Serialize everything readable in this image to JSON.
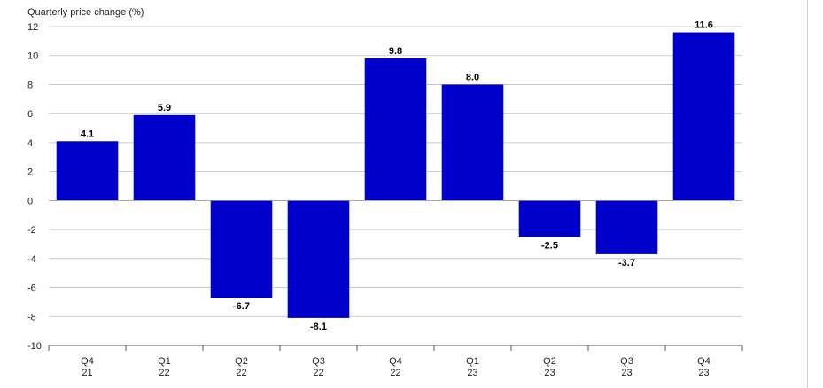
{
  "chart_data": {
    "type": "bar",
    "ylabel": "Quarterly price change (%)",
    "categories": [
      [
        "Q4",
        "21"
      ],
      [
        "Q1",
        "22"
      ],
      [
        "Q2",
        "22"
      ],
      [
        "Q3",
        "22"
      ],
      [
        "Q4",
        "22"
      ],
      [
        "Q1",
        "23"
      ],
      [
        "Q2",
        "23"
      ],
      [
        "Q3",
        "23"
      ],
      [
        "Q4",
        "23"
      ]
    ],
    "values": [
      4.1,
      5.9,
      -6.7,
      -8.1,
      9.8,
      8.0,
      -2.5,
      -3.7,
      11.6
    ],
    "data_labels": [
      "4.1",
      "5.9",
      "-6.7",
      "-8.1",
      "9.8",
      "8.0",
      "-2.5",
      "-3.7",
      "11.6"
    ],
    "ylim": [
      -10,
      12
    ],
    "yticks": [
      12,
      10,
      8,
      6,
      4,
      2,
      0,
      -2,
      -4,
      -6,
      -8,
      -10
    ],
    "grid": true,
    "bar_color": "#0000cc"
  }
}
